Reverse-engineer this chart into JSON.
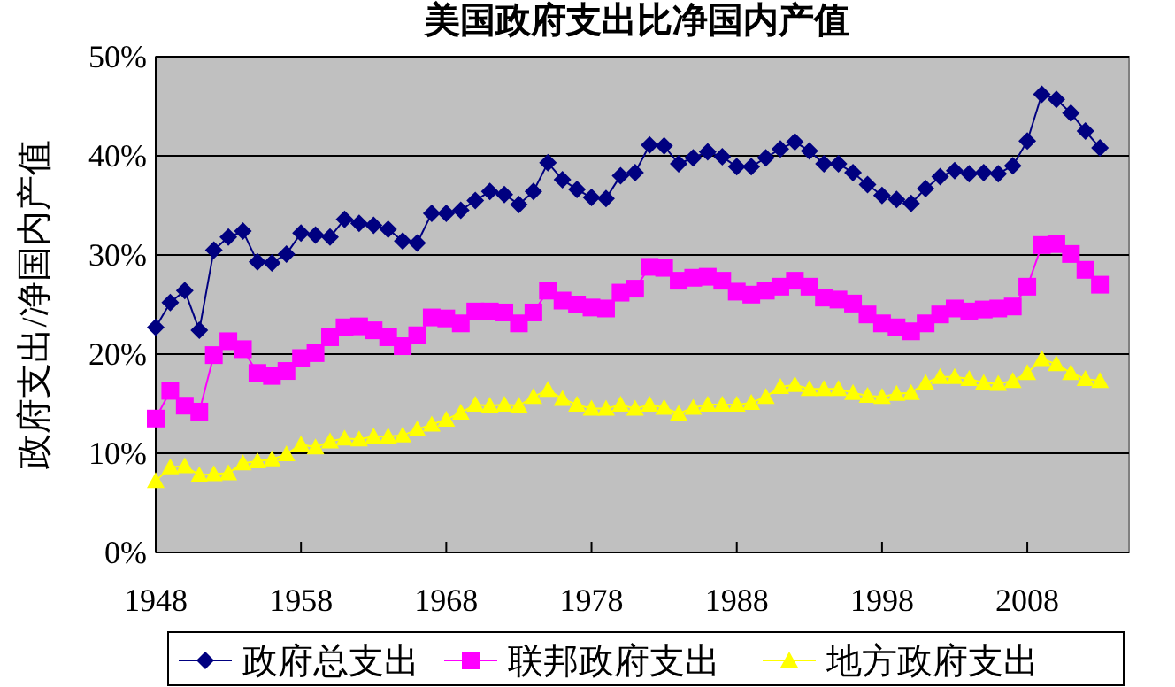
{
  "chart_data": {
    "type": "line",
    "title": "美国政府支出比净国内产值",
    "ylabel": "政府支出/净国内产值",
    "x": [
      1948,
      1949,
      1950,
      1951,
      1952,
      1953,
      1954,
      1955,
      1956,
      1957,
      1958,
      1959,
      1960,
      1961,
      1962,
      1963,
      1964,
      1965,
      1966,
      1967,
      1968,
      1969,
      1970,
      1971,
      1972,
      1973,
      1974,
      1975,
      1976,
      1977,
      1978,
      1979,
      1980,
      1981,
      1982,
      1983,
      1984,
      1985,
      1986,
      1987,
      1988,
      1989,
      1990,
      1991,
      1992,
      1993,
      1994,
      1995,
      1996,
      1997,
      1998,
      1999,
      2000,
      2001,
      2002,
      2003,
      2004,
      2005,
      2006,
      2007,
      2008,
      2009,
      2010,
      2011,
      2012,
      2013
    ],
    "series": [
      {
        "name": "政府总支出",
        "color": "#000080",
        "marker": "diamond",
        "values": [
          22.7,
          25.2,
          26.4,
          22.4,
          30.5,
          31.8,
          32.4,
          29.3,
          29.2,
          30.1,
          32.2,
          32.0,
          31.8,
          33.6,
          33.2,
          33.0,
          32.6,
          31.4,
          31.2,
          34.2,
          34.2,
          34.5,
          35.5,
          36.4,
          36.1,
          35.1,
          36.4,
          39.3,
          37.6,
          36.6,
          35.8,
          35.7,
          38.0,
          38.3,
          41.1,
          41.0,
          39.2,
          39.8,
          40.4,
          39.9,
          38.9,
          38.9,
          39.8,
          40.7,
          41.4,
          40.5,
          39.2,
          39.2,
          38.3,
          37.1,
          36.0,
          35.6,
          35.2,
          36.7,
          37.9,
          38.5,
          38.2,
          38.3,
          38.2,
          39.0,
          41.5,
          46.2,
          45.7,
          44.3,
          42.5,
          40.8
        ]
      },
      {
        "name": "联邦政府支出",
        "color": "#ff00ff",
        "marker": "square",
        "values": [
          13.5,
          16.3,
          14.8,
          14.2,
          19.9,
          21.3,
          20.5,
          18.1,
          17.8,
          18.3,
          19.6,
          20.1,
          21.7,
          22.7,
          22.8,
          22.4,
          21.7,
          20.8,
          21.9,
          23.7,
          23.6,
          23.1,
          24.3,
          24.3,
          24.2,
          23.1,
          24.2,
          26.4,
          25.4,
          25.0,
          24.7,
          24.6,
          26.2,
          26.6,
          28.8,
          28.7,
          27.4,
          27.7,
          27.8,
          27.4,
          26.3,
          26.0,
          26.4,
          26.8,
          27.4,
          26.8,
          25.7,
          25.5,
          25.1,
          24.0,
          23.1,
          22.7,
          22.3,
          23.1,
          24.0,
          24.6,
          24.3,
          24.5,
          24.6,
          24.8,
          26.8,
          31.0,
          31.1,
          30.1,
          28.5,
          27.0
        ]
      },
      {
        "name": "地方政府支出",
        "color": "#ffff00",
        "marker": "triangle",
        "values": [
          7.2,
          8.6,
          8.7,
          7.8,
          7.9,
          8.0,
          9.0,
          9.2,
          9.4,
          9.9,
          10.9,
          10.6,
          11.2,
          11.5,
          11.4,
          11.7,
          11.7,
          11.8,
          12.4,
          12.9,
          13.4,
          14.1,
          14.9,
          14.8,
          14.9,
          14.8,
          15.7,
          16.4,
          15.5,
          14.9,
          14.5,
          14.5,
          14.9,
          14.5,
          14.9,
          14.6,
          14.0,
          14.6,
          14.9,
          14.9,
          14.9,
          15.1,
          15.7,
          16.7,
          16.9,
          16.5,
          16.5,
          16.5,
          16.1,
          15.8,
          15.7,
          16.0,
          16.1,
          17.1,
          17.7,
          17.7,
          17.5,
          17.1,
          17.0,
          17.3,
          18.1,
          19.5,
          19.0,
          18.1,
          17.5,
          17.3
        ]
      }
    ],
    "xlim": [
      1948,
      2015
    ],
    "xticks": [
      1948,
      1958,
      1968,
      1978,
      1988,
      1998,
      2008
    ],
    "ylim": [
      0,
      50
    ],
    "yticks": [
      {
        "value": 0,
        "label": "0%"
      },
      {
        "value": 10,
        "label": "10%"
      },
      {
        "value": 20,
        "label": "20%"
      },
      {
        "value": 30,
        "label": "30%"
      },
      {
        "value": 40,
        "label": "40%"
      },
      {
        "value": 50,
        "label": "50%"
      }
    ],
    "grid": "y",
    "legend": "bottom",
    "line_style": "solid"
  }
}
